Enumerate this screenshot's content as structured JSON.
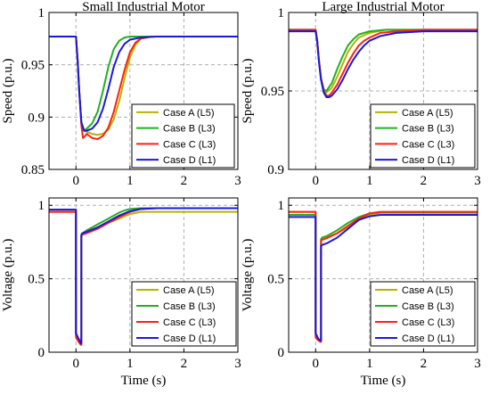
{
  "chart_data": [
    {
      "type": "line",
      "title": "Small Industrial Motor",
      "xlabel": "",
      "ylabel": "Speed (p.u.)",
      "xlim": [
        -0.5,
        3
      ],
      "ylim": [
        0.85,
        1
      ],
      "xticks": [
        0,
        1,
        2,
        3
      ],
      "yticks": [
        0.85,
        0.9,
        0.95,
        1
      ],
      "ytick_labels": [
        "0.85",
        "0.9",
        "0.95",
        "1"
      ],
      "grid": true,
      "legend_position": "bottom-right",
      "series": [
        {
          "name": "Case A (L5)",
          "color": "#b5b400",
          "x": [
            -0.5,
            0,
            0.03,
            0.06,
            0.1,
            0.15,
            0.2,
            0.3,
            0.4,
            0.5,
            0.6,
            0.7,
            0.8,
            0.9,
            1.0,
            1.1,
            1.2,
            1.4,
            1.8,
            3.0
          ],
          "y": [
            0.977,
            0.977,
            0.955,
            0.925,
            0.895,
            0.887,
            0.886,
            0.884,
            0.883,
            0.884,
            0.888,
            0.898,
            0.915,
            0.937,
            0.957,
            0.969,
            0.975,
            0.977,
            0.977,
            0.977
          ]
        },
        {
          "name": "Case B (L3)",
          "color": "#22b020",
          "x": [
            -0.5,
            0,
            0.03,
            0.06,
            0.1,
            0.15,
            0.2,
            0.3,
            0.4,
            0.5,
            0.6,
            0.7,
            0.8,
            0.9,
            1.0,
            1.2,
            1.5,
            3.0
          ],
          "y": [
            0.977,
            0.977,
            0.955,
            0.925,
            0.895,
            0.887,
            0.889,
            0.894,
            0.905,
            0.925,
            0.948,
            0.965,
            0.973,
            0.976,
            0.977,
            0.977,
            0.977,
            0.977
          ]
        },
        {
          "name": "Case C (L3)",
          "color": "#ff2010",
          "x": [
            -0.5,
            0,
            0.03,
            0.06,
            0.1,
            0.13,
            0.17,
            0.2,
            0.3,
            0.4,
            0.5,
            0.6,
            0.7,
            0.8,
            0.9,
            1.0,
            1.1,
            1.2,
            1.4,
            1.8,
            3.0
          ],
          "y": [
            0.977,
            0.977,
            0.955,
            0.925,
            0.892,
            0.88,
            0.882,
            0.884,
            0.88,
            0.879,
            0.882,
            0.89,
            0.905,
            0.925,
            0.945,
            0.962,
            0.971,
            0.975,
            0.977,
            0.977,
            0.977
          ]
        },
        {
          "name": "Case D (L1)",
          "color": "#1a18e0",
          "x": [
            -0.5,
            0,
            0.03,
            0.06,
            0.1,
            0.15,
            0.2,
            0.3,
            0.4,
            0.5,
            0.6,
            0.7,
            0.8,
            0.9,
            1.0,
            1.2,
            1.5,
            3.0
          ],
          "y": [
            0.977,
            0.977,
            0.955,
            0.925,
            0.895,
            0.887,
            0.887,
            0.889,
            0.895,
            0.908,
            0.927,
            0.948,
            0.962,
            0.97,
            0.974,
            0.976,
            0.977,
            0.977
          ]
        }
      ]
    },
    {
      "type": "line",
      "title": "Large Industrial Motor",
      "xlabel": "",
      "ylabel": "Speed (p.u.)",
      "xlim": [
        -0.5,
        3
      ],
      "ylim": [
        0.9,
        1
      ],
      "xticks": [
        0,
        1,
        2,
        3
      ],
      "yticks": [
        0.9,
        0.95,
        1
      ],
      "ytick_labels": [
        "0.9",
        "0.95",
        "1"
      ],
      "grid": true,
      "legend_position": "bottom-right",
      "series": [
        {
          "name": "Case A (L5)",
          "color": "#b5b400",
          "x": [
            -0.5,
            0,
            0.03,
            0.06,
            0.1,
            0.15,
            0.2,
            0.3,
            0.4,
            0.5,
            0.6,
            0.7,
            0.8,
            1.0,
            1.3,
            1.8,
            3.0
          ],
          "y": [
            0.989,
            0.989,
            0.982,
            0.97,
            0.958,
            0.951,
            0.949,
            0.952,
            0.959,
            0.967,
            0.975,
            0.98,
            0.984,
            0.987,
            0.989,
            0.989,
            0.989
          ]
        },
        {
          "name": "Case B (L3)",
          "color": "#22b020",
          "x": [
            -0.5,
            0,
            0.03,
            0.06,
            0.1,
            0.15,
            0.2,
            0.3,
            0.4,
            0.5,
            0.6,
            0.7,
            0.8,
            1.0,
            1.3,
            1.8,
            3.0
          ],
          "y": [
            0.989,
            0.989,
            0.982,
            0.97,
            0.958,
            0.951,
            0.95,
            0.955,
            0.964,
            0.972,
            0.979,
            0.983,
            0.986,
            0.988,
            0.989,
            0.989,
            0.989
          ]
        },
        {
          "name": "Case C (L3)",
          "color": "#ff2010",
          "x": [
            -0.5,
            0,
            0.03,
            0.06,
            0.1,
            0.15,
            0.2,
            0.25,
            0.3,
            0.4,
            0.5,
            0.6,
            0.7,
            0.8,
            0.9,
            1.0,
            1.2,
            1.5,
            2.0,
            3.0
          ],
          "y": [
            0.989,
            0.989,
            0.982,
            0.97,
            0.958,
            0.95,
            0.947,
            0.947,
            0.949,
            0.954,
            0.961,
            0.968,
            0.974,
            0.979,
            0.982,
            0.984,
            0.987,
            0.988,
            0.989,
            0.989
          ]
        },
        {
          "name": "Case D (L1)",
          "color": "#1a18e0",
          "x": [
            -0.5,
            0,
            0.03,
            0.06,
            0.1,
            0.15,
            0.2,
            0.25,
            0.3,
            0.4,
            0.5,
            0.6,
            0.7,
            0.8,
            0.9,
            1.0,
            1.2,
            1.5,
            2.0,
            3.0
          ],
          "y": [
            0.988,
            0.988,
            0.981,
            0.969,
            0.957,
            0.949,
            0.946,
            0.946,
            0.947,
            0.951,
            0.957,
            0.964,
            0.97,
            0.975,
            0.979,
            0.982,
            0.985,
            0.987,
            0.988,
            0.988
          ]
        }
      ]
    },
    {
      "type": "line",
      "title": "",
      "xlabel": "Time (s)",
      "ylabel": "Voltage (p.u.)",
      "xlim": [
        -0.5,
        3
      ],
      "ylim": [
        0,
        1.05
      ],
      "xticks": [
        0,
        1,
        2,
        3
      ],
      "yticks": [
        0,
        0.5,
        1
      ],
      "ytick_labels": [
        "0",
        "0.5",
        "1"
      ],
      "grid": true,
      "legend_position": "bottom-right",
      "series": [
        {
          "name": "Case A (L5)",
          "color": "#b5b400",
          "x": [
            -0.5,
            -0.001,
            0,
            0.05,
            0.09,
            0.1,
            0.1,
            0.12,
            0.2,
            0.4,
            0.6,
            0.8,
            1.0,
            1.2,
            1.5,
            3.0
          ],
          "y": [
            0.955,
            0.955,
            0.12,
            0.09,
            0.07,
            0.07,
            0.79,
            0.8,
            0.82,
            0.85,
            0.88,
            0.91,
            0.94,
            0.955,
            0.955,
            0.955
          ]
        },
        {
          "name": "Case B (L3)",
          "color": "#22b020",
          "x": [
            -0.5,
            -0.001,
            0,
            0.05,
            0.09,
            0.1,
            0.1,
            0.12,
            0.2,
            0.4,
            0.6,
            0.8,
            0.9,
            1.0,
            1.2,
            1.5,
            3.0
          ],
          "y": [
            0.97,
            0.97,
            0.12,
            0.09,
            0.07,
            0.07,
            0.8,
            0.81,
            0.83,
            0.87,
            0.91,
            0.95,
            0.965,
            0.975,
            0.98,
            0.98,
            0.98
          ]
        },
        {
          "name": "Case C (L3)",
          "color": "#ff2010",
          "x": [
            -0.5,
            -0.001,
            0,
            0.05,
            0.09,
            0.1,
            0.1,
            0.12,
            0.2,
            0.4,
            0.6,
            0.8,
            1.0,
            1.2,
            1.5,
            3.0
          ],
          "y": [
            0.955,
            0.955,
            0.1,
            0.07,
            0.05,
            0.05,
            0.79,
            0.8,
            0.81,
            0.84,
            0.88,
            0.92,
            0.955,
            0.975,
            0.98,
            0.98
          ]
        },
        {
          "name": "Case D (L1)",
          "color": "#1a18e0",
          "x": [
            -0.5,
            -0.001,
            0,
            0.05,
            0.09,
            0.1,
            0.1,
            0.12,
            0.2,
            0.4,
            0.6,
            0.8,
            1.0,
            1.2,
            1.5,
            3.0
          ],
          "y": [
            0.97,
            0.97,
            0.13,
            0.09,
            0.06,
            0.06,
            0.8,
            0.81,
            0.82,
            0.85,
            0.89,
            0.93,
            0.96,
            0.975,
            0.98,
            0.98
          ]
        }
      ]
    },
    {
      "type": "line",
      "title": "",
      "xlabel": "Time (s)",
      "ylabel": "Voltage (p.u.)",
      "xlim": [
        -0.5,
        3
      ],
      "ylim": [
        0,
        1.05
      ],
      "xticks": [
        0,
        1,
        2,
        3
      ],
      "yticks": [
        0,
        0.5,
        1
      ],
      "ytick_labels": [
        "0",
        "0.5",
        "1"
      ],
      "grid": true,
      "legend_position": "bottom-right",
      "series": [
        {
          "name": "Case A (L5)",
          "color": "#b5b400",
          "x": [
            -0.5,
            -0.001,
            0,
            0.05,
            0.09,
            0.1,
            0.1,
            0.12,
            0.2,
            0.4,
            0.6,
            0.8,
            1.0,
            1.2,
            1.5,
            3.0
          ],
          "y": [
            0.955,
            0.955,
            0.12,
            0.09,
            0.08,
            0.08,
            0.76,
            0.77,
            0.78,
            0.81,
            0.85,
            0.9,
            0.935,
            0.95,
            0.955,
            0.955
          ]
        },
        {
          "name": "Case B (L3)",
          "color": "#22b020",
          "x": [
            -0.5,
            -0.001,
            0,
            0.05,
            0.09,
            0.1,
            0.1,
            0.12,
            0.2,
            0.4,
            0.6,
            0.8,
            1.0,
            1.2,
            1.5,
            3.0
          ],
          "y": [
            0.935,
            0.935,
            0.12,
            0.09,
            0.08,
            0.08,
            0.77,
            0.78,
            0.79,
            0.83,
            0.88,
            0.92,
            0.945,
            0.95,
            0.95,
            0.95
          ]
        },
        {
          "name": "Case C (L3)",
          "color": "#ff2010",
          "x": [
            -0.5,
            -0.001,
            0,
            0.05,
            0.09,
            0.1,
            0.1,
            0.12,
            0.2,
            0.4,
            0.6,
            0.8,
            1.0,
            1.2,
            1.5,
            3.0
          ],
          "y": [
            0.955,
            0.955,
            0.1,
            0.08,
            0.07,
            0.07,
            0.76,
            0.765,
            0.775,
            0.81,
            0.86,
            0.91,
            0.945,
            0.955,
            0.955,
            0.955
          ]
        },
        {
          "name": "Case D (L1)",
          "color": "#1a18e0",
          "x": [
            -0.5,
            -0.001,
            0,
            0.05,
            0.09,
            0.1,
            0.1,
            0.12,
            0.2,
            0.4,
            0.6,
            0.8,
            1.0,
            1.2,
            1.5,
            3.0
          ],
          "y": [
            0.92,
            0.92,
            0.13,
            0.09,
            0.08,
            0.08,
            0.72,
            0.73,
            0.74,
            0.78,
            0.84,
            0.9,
            0.925,
            0.935,
            0.935,
            0.935
          ]
        }
      ]
    }
  ]
}
